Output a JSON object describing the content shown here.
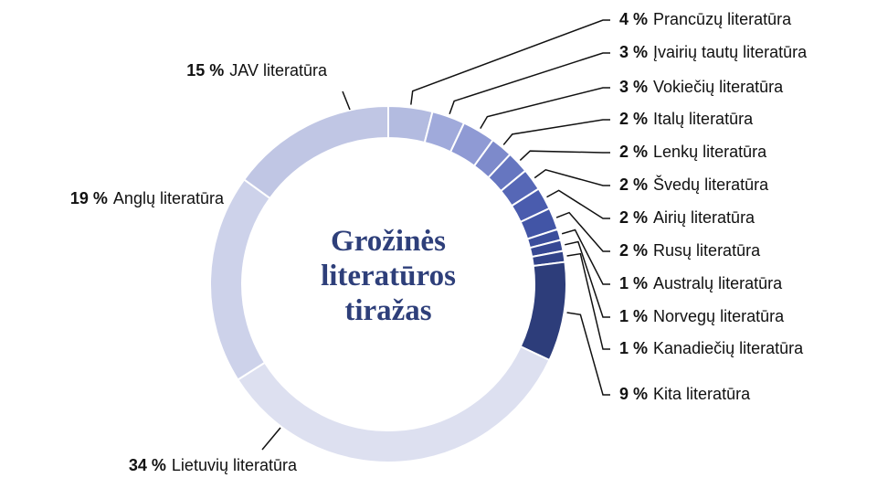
{
  "chart_data": {
    "type": "donut",
    "title": "Grožinės literatūros tiražas",
    "categories": [
      "Prancūzų literatūra",
      "Įvairių tautų literatūra",
      "Vokiečių literatūra",
      "Italų literatūra",
      "Lenkų literatūra",
      "Švedų literatūra",
      "Airių literatūra",
      "Rusų literatūra",
      "Australų literatūra",
      "Norvegų literatūra",
      "Kanadiečių literatūra",
      "Kita literatūra",
      "Lietuvių literatūra",
      "Anglų literatūra",
      "JAV literatūra"
    ],
    "values": [
      4,
      3,
      3,
      2,
      2,
      2,
      2,
      2,
      1,
      1,
      1,
      9,
      34,
      19,
      15
    ],
    "value_labels": [
      "4 %",
      "3 %",
      "3 %",
      "2 %",
      "2 %",
      "2 %",
      "2 %",
      "2 %",
      "1 %",
      "1 %",
      "1 %",
      "9 %",
      "34 %",
      "19 %",
      "15 %"
    ],
    "colors": [
      "#b3bbe0",
      "#a0aadb",
      "#8f9ad4",
      "#7d8acb",
      "#6676c0",
      "#5667b6",
      "#4a5cae",
      "#4255a6",
      "#3c4e9c",
      "#374893",
      "#324389",
      "#2d3d7a",
      "#dde0f0",
      "#cdd2ea",
      "#c0c6e4"
    ]
  }
}
